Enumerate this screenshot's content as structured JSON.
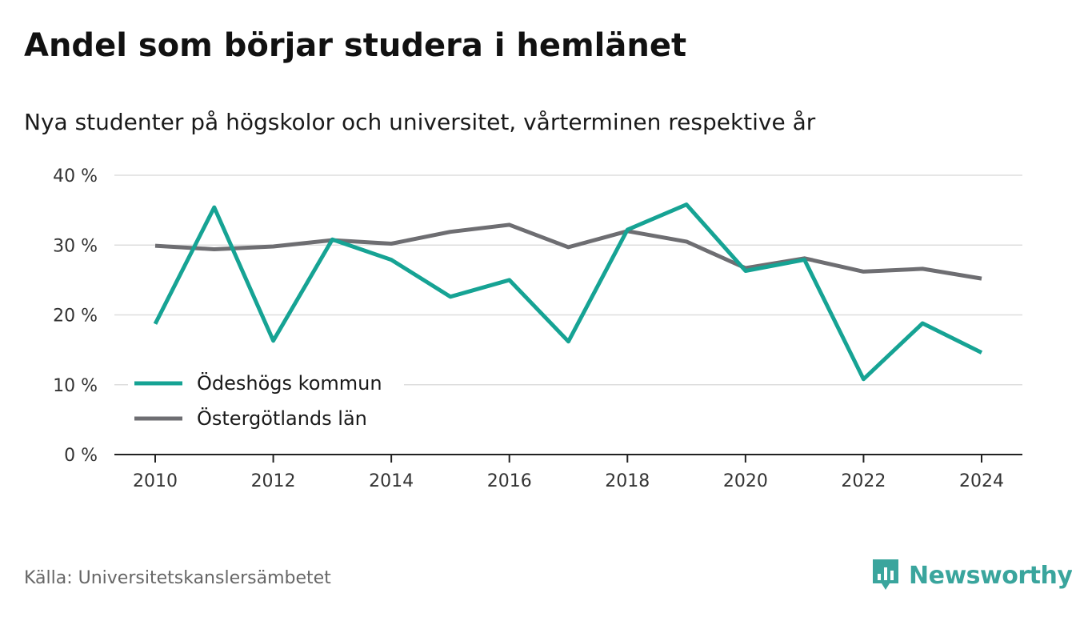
{
  "header": {
    "title": "Andel som börjar studera i hemlänet",
    "subtitle": "Nya studenter på högskolor och universitet, vårterminen respektive år"
  },
  "footer": {
    "source": "Källa: Universitetskanslersämbetet",
    "brand": "Newsworthy",
    "brand_icon": "bar-chart-badge-icon",
    "brand_color": "#3aa59d"
  },
  "chart_data": {
    "type": "line",
    "x": [
      2010,
      2011,
      2012,
      2013,
      2014,
      2015,
      2016,
      2017,
      2018,
      2019,
      2020,
      2021,
      2022,
      2023,
      2024
    ],
    "x_ticks": [
      "2010",
      "2012",
      "2014",
      "2016",
      "2018",
      "2020",
      "2022",
      "2024"
    ],
    "y_ticks": [
      "0 %",
      "10 %",
      "20 %",
      "30 %",
      "40 %"
    ],
    "ylim": [
      0,
      40
    ],
    "grid": true,
    "legend_position": "bottom-left",
    "series": [
      {
        "name": "Ödeshögs kommun",
        "color": "#16a394",
        "values": [
          18.7,
          35.4,
          16.3,
          30.8,
          27.9,
          22.6,
          25.0,
          16.2,
          32.2,
          35.8,
          26.3,
          27.9,
          10.8,
          18.8,
          14.6
        ]
      },
      {
        "name": "Östergötlands län",
        "color": "#6e6e72",
        "values": [
          29.9,
          29.4,
          29.8,
          30.7,
          30.2,
          31.9,
          32.9,
          29.7,
          32.0,
          30.5,
          26.7,
          28.1,
          26.2,
          26.6,
          25.2
        ]
      }
    ]
  }
}
